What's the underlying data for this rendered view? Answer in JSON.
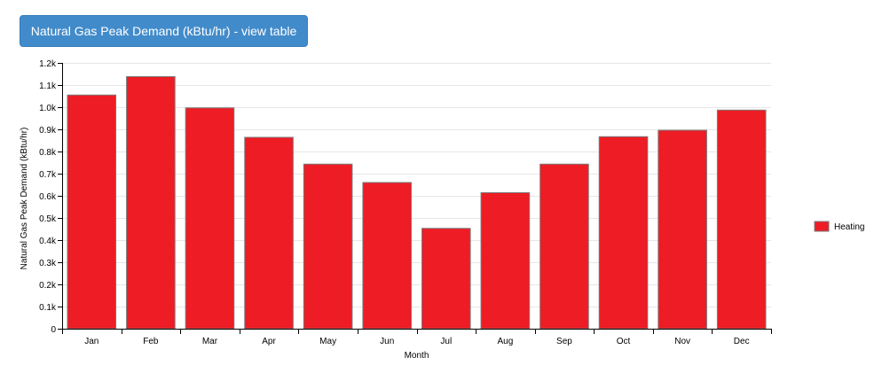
{
  "header": {
    "view_table_button": "Natural Gas Peak Demand (kBtu/hr) - view table"
  },
  "colors": {
    "bar_fill": "#ee1c24",
    "bar_stroke": "#7a7a7a",
    "grid": "#e6e6e6",
    "button_bg": "#428bca"
  },
  "chart_data": {
    "type": "bar",
    "categories": [
      "Jan",
      "Feb",
      "Mar",
      "Apr",
      "May",
      "Jun",
      "Jul",
      "Aug",
      "Sep",
      "Oct",
      "Nov",
      "Dec"
    ],
    "series": [
      {
        "name": "Heating",
        "values": [
          1055,
          1138,
          997,
          864,
          743,
          660,
          453,
          614,
          743,
          867,
          896,
          987
        ]
      }
    ],
    "ylim": [
      0,
      1200
    ],
    "yticks": [
      0,
      100,
      200,
      300,
      400,
      500,
      600,
      700,
      800,
      900,
      1000,
      1100,
      1200
    ],
    "ytick_labels": [
      "0",
      "0.1k",
      "0.2k",
      "0.3k",
      "0.4k",
      "0.5k",
      "0.6k",
      "0.7k",
      "0.8k",
      "0.9k",
      "1.0k",
      "1.1k",
      "1.2k"
    ],
    "xlabel": "Month",
    "ylabel": "Natural Gas Peak Demand (kBtu/hr)",
    "grid": true,
    "legend_position": "right"
  }
}
